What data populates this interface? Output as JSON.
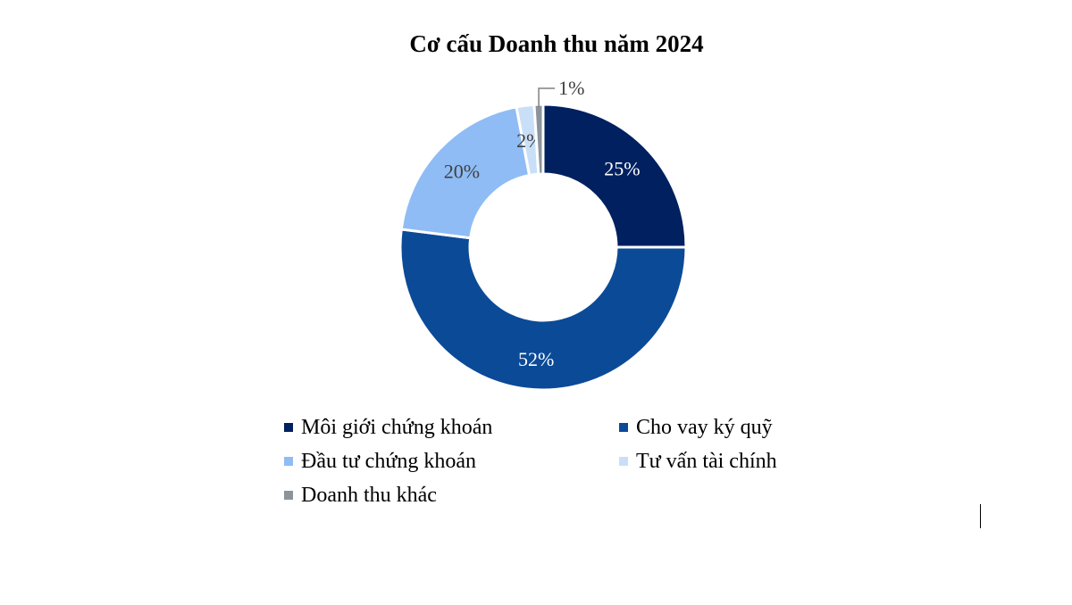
{
  "chart_data": {
    "type": "pie",
    "title": "Cơ cấu Doanh thu năm 2024",
    "series": [
      {
        "name": "Môi giới chứng khoán",
        "value": 25,
        "label": "25%",
        "color": "#002060"
      },
      {
        "name": "Cho vay ký quỹ",
        "value": 52,
        "label": "52%",
        "color": "#0B4A97"
      },
      {
        "name": "Đầu tư chứng khoán",
        "value": 20,
        "label": "20%",
        "color": "#8FBCF5"
      },
      {
        "name": "Tư vấn tài chính",
        "value": 2,
        "label": "2%",
        "color": "#C9DFF8"
      },
      {
        "name": "Doanh thu khác",
        "value": 1,
        "label": "1%",
        "color": "#8C939B"
      }
    ],
    "legend_position": "bottom"
  }
}
